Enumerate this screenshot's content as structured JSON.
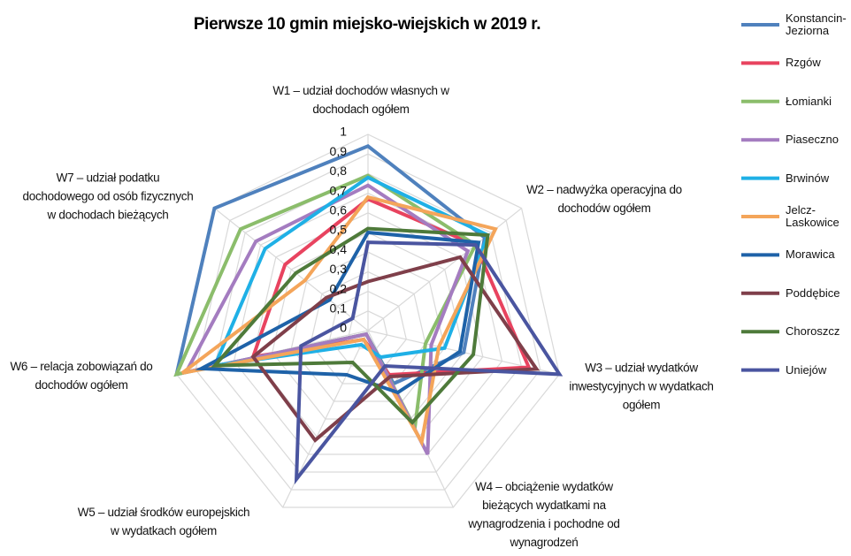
{
  "chart_data": {
    "type": "radar",
    "title": "Pierwsze 10 gmin miejsko-wiejskich w 2019 r.",
    "categories": [
      "W1 – udział dochodów własnych w\ndochodach ogółem",
      "W2 – nadwyżka operacyjna do\ndochodów ogółem",
      "W3 – udział wydatków\ninwestycyjnych w wydatkach\nogółem",
      "W4 – obciążenie wydatków\nbieżących wydatkami na\nwynagrodzenia i pochodne od\nwynagrodzeń",
      "W5 – udział środków europejskich\nw wydatkach ogółem",
      "W6 – relacja zobowiązań do\ndochodów ogółem",
      "W7 – udział podatku\ndochodowego od osób fizycznych\nw dochodach bieżących"
    ],
    "rlim": [
      0,
      1
    ],
    "rticks": [
      0,
      {
        "value": 0.1,
        "label": "0,1"
      },
      {
        "value": 0.2,
        "label": "0,2"
      },
      {
        "value": 0.3,
        "label": "0,3"
      },
      {
        "value": 0.4,
        "label": "0,4"
      },
      {
        "value": 0.5,
        "label": "0,5"
      },
      {
        "value": 0.6,
        "label": "0,6"
      },
      {
        "value": 0.7,
        "label": "0,7"
      },
      {
        "value": 0.8,
        "label": "0,8"
      },
      {
        "value": 0.9,
        "label": "0,9"
      },
      1
    ],
    "grid": true,
    "legend": "right",
    "series": [
      {
        "name": "Konstancin-\nJeziorna",
        "color": "#4f81bd",
        "values": [
          0.94,
          0.76,
          0.5,
          0.3,
          0.02,
          1,
          1
        ]
      },
      {
        "name": "Rzgów",
        "color": "#e8435f",
        "values": [
          0.67,
          0.7,
          0.84,
          0.25,
          0.05,
          0.6,
          0.54
        ]
      },
      {
        "name": "Łomianki",
        "color": "#8bbd6b",
        "values": [
          0.79,
          0.7,
          0.3,
          0.55,
          0.02,
          1,
          0.83
        ]
      },
      {
        "name": "Piaseczno",
        "color": "#a47cc0",
        "values": [
          0.74,
          0.65,
          0.33,
          0.7,
          0.02,
          0.95,
          0.73
        ]
      },
      {
        "name": "Brwinów",
        "color": "#1fb0e6",
        "values": [
          0.78,
          0.78,
          0.4,
          0.15,
          0.08,
          0.8,
          0.67
        ]
      },
      {
        "name": "Jelcz-\nLaskowice",
        "color": "#f4a55a",
        "values": [
          0.68,
          0.83,
          0.37,
          0.63,
          0.05,
          0.97,
          0.41
        ]
      },
      {
        "name": "Morawica",
        "color": "#1e62a8",
        "values": [
          0.5,
          0.72,
          0.48,
          0.35,
          0.25,
          0.87,
          0.25
        ]
      },
      {
        "name": "Poddębice",
        "color": "#7f3f4a",
        "values": [
          0.25,
          0.6,
          0.88,
          0.26,
          0.62,
          0.6,
          0.27
        ]
      },
      {
        "name": "Choroszcz",
        "color": "#4e7a3a",
        "values": [
          0.52,
          0.78,
          0.55,
          0.52,
          0.18,
          0.8,
          0.47
        ]
      },
      {
        "name": "Uniejów",
        "color": "#4a55a0",
        "values": [
          0.45,
          0.7,
          1.0,
          0.2,
          0.84,
          0.35,
          0.1
        ]
      }
    ]
  }
}
